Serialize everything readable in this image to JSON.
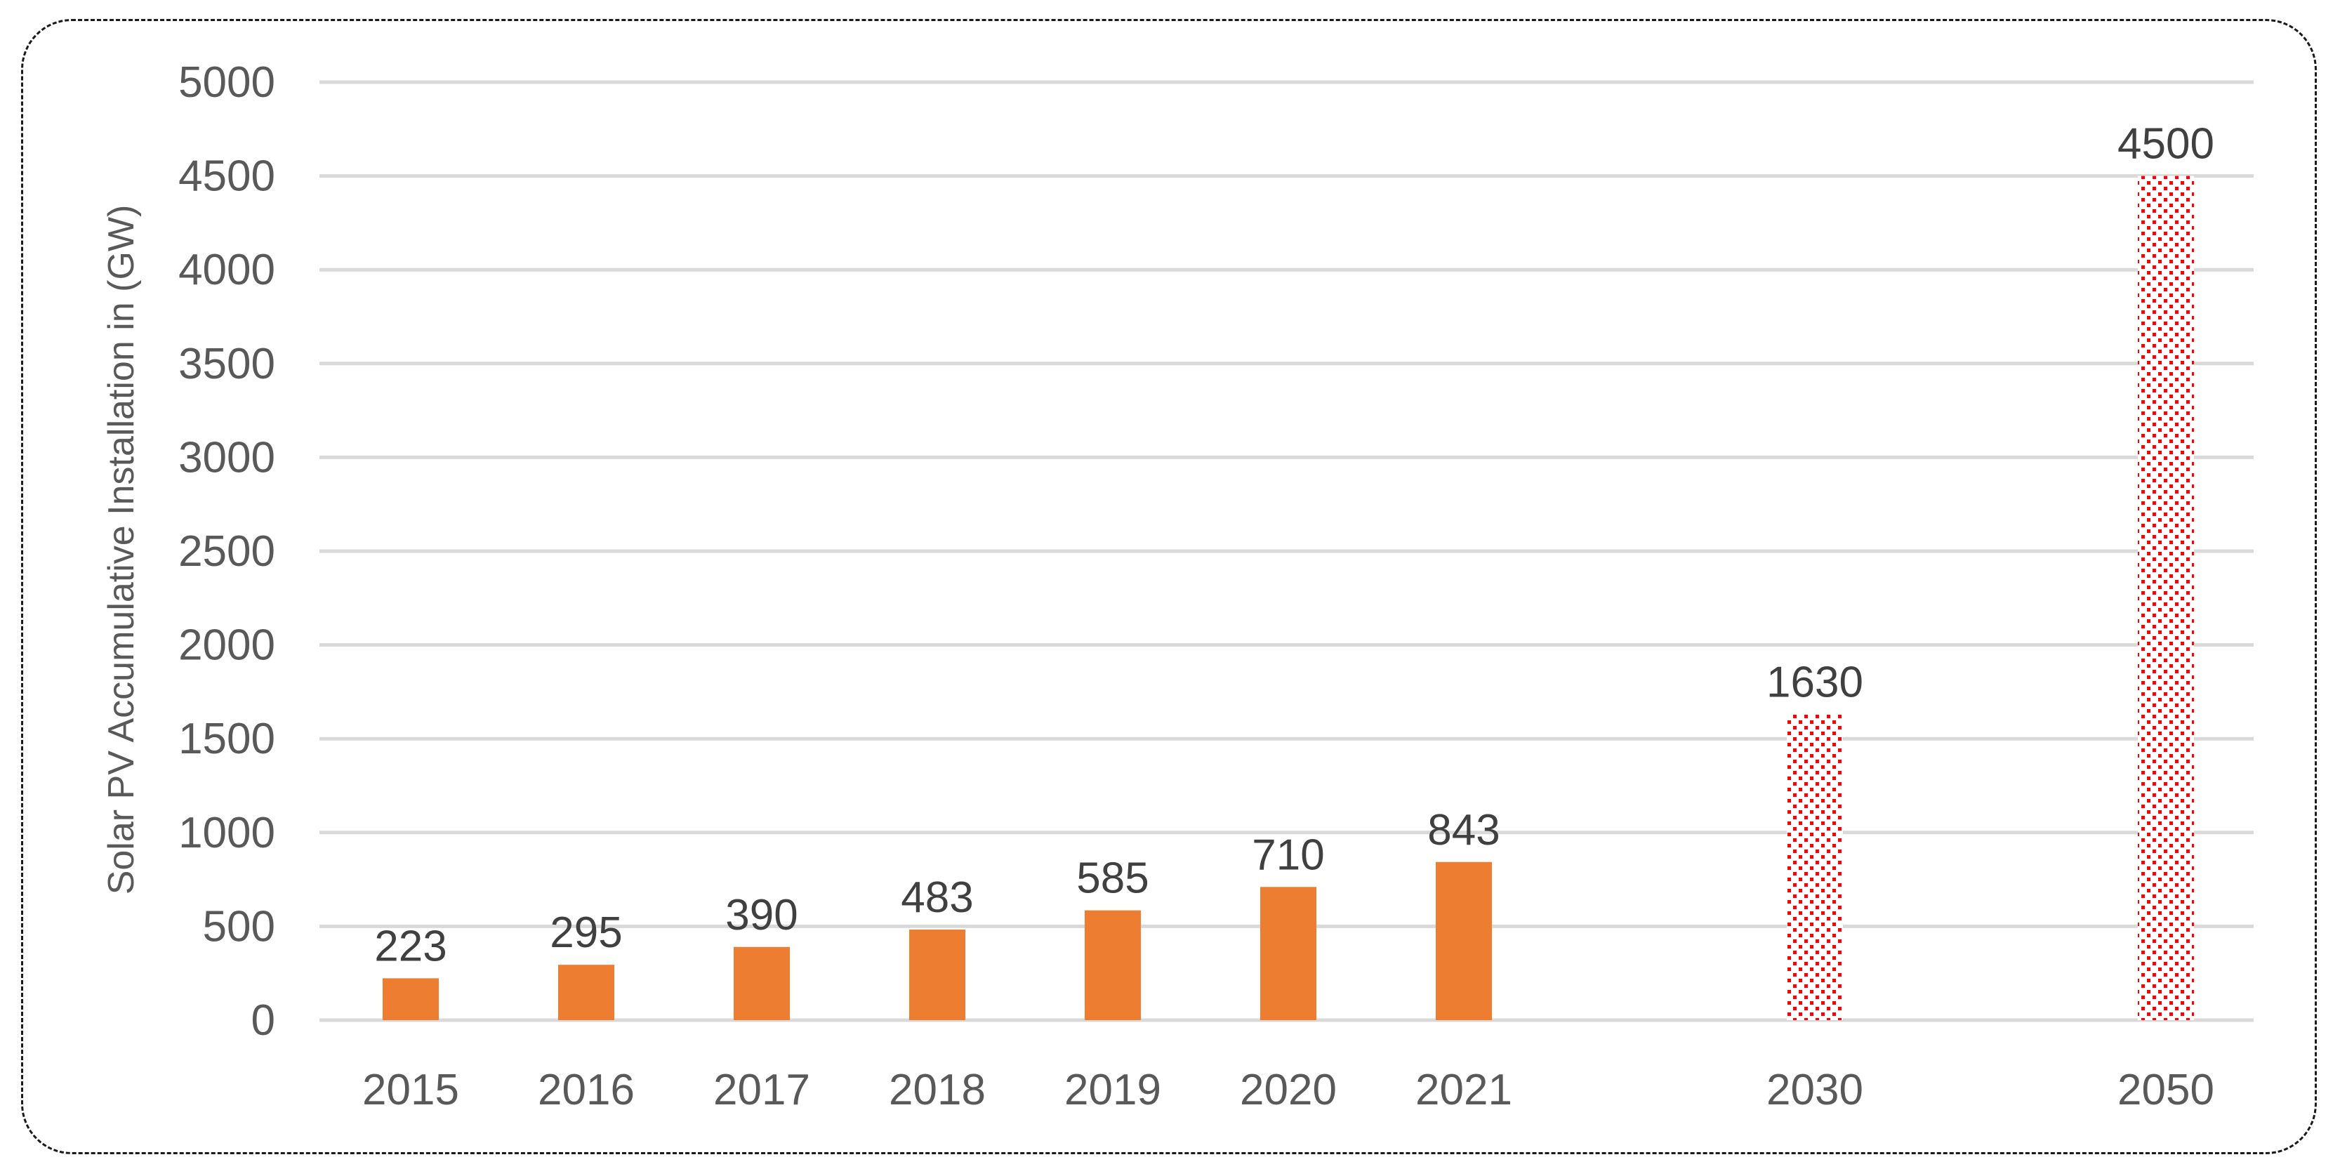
{
  "chart_data": {
    "type": "bar",
    "title": "",
    "xlabel": "",
    "ylabel": "Solar PV Accumulative Installation in (GW)",
    "ylim": [
      0,
      5000
    ],
    "yticks": [
      0,
      500,
      1000,
      1500,
      2000,
      2500,
      3000,
      3500,
      4000,
      4500,
      5000
    ],
    "grid": true,
    "legend": "none",
    "categories": [
      "2015",
      "2016",
      "2017",
      "2018",
      "2019",
      "2020",
      "2021",
      "2030",
      "2050"
    ],
    "values": [
      223,
      295,
      390,
      483,
      585,
      710,
      843,
      1630,
      4500
    ],
    "data_labels": [
      "223",
      "295",
      "390",
      "483",
      "585",
      "710",
      "843",
      "1630",
      "4500"
    ],
    "bar_styles": [
      "actual",
      "actual",
      "actual",
      "actual",
      "actual",
      "actual",
      "actual",
      "projected",
      "projected"
    ],
    "colors": {
      "actual": "#ED7D31",
      "projected": "#FF0000",
      "grid": "#D9D9D9",
      "tick_text": "#595959",
      "label_text": "#404040"
    }
  }
}
